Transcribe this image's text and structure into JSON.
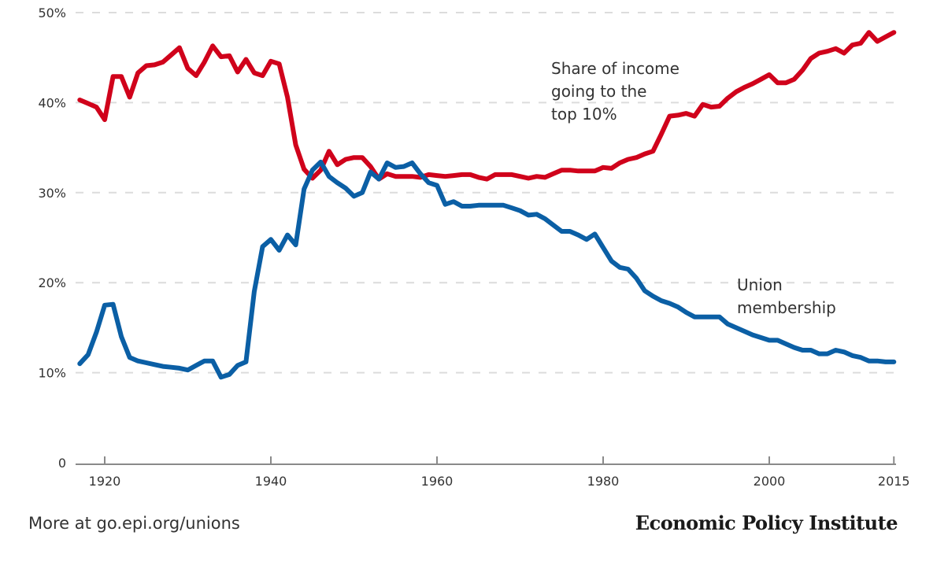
{
  "chart_data": {
    "type": "line",
    "title": "",
    "xlabel": "",
    "ylabel": "",
    "xlim": [
      1917,
      2015
    ],
    "ylim": [
      0,
      50
    ],
    "grid": true,
    "y_ticks": [
      {
        "value": 0,
        "label": "0"
      },
      {
        "value": 10,
        "label": "10%"
      },
      {
        "value": 20,
        "label": "20%"
      },
      {
        "value": 30,
        "label": "30%"
      },
      {
        "value": 40,
        "label": "40%"
      },
      {
        "value": 50,
        "label": "50%"
      }
    ],
    "x_ticks": [
      {
        "value": 1920,
        "label": "1920"
      },
      {
        "value": 1940,
        "label": "1940"
      },
      {
        "value": 1960,
        "label": "1960"
      },
      {
        "value": 1980,
        "label": "1980"
      },
      {
        "value": 2000,
        "label": "2000"
      },
      {
        "value": 2015,
        "label": "2015"
      }
    ],
    "x_start": 1917,
    "series": [
      {
        "name": "Share of income going to the top 10%",
        "label_lines": [
          "Share of income",
          "going to the",
          "top 10%"
        ],
        "color": "#d0021b",
        "values": [
          40.3,
          39.9,
          39.5,
          38.1,
          42.9,
          42.9,
          40.6,
          43.3,
          44.1,
          44.2,
          44.5,
          45.3,
          46.1,
          43.8,
          43.0,
          44.5,
          46.3,
          45.1,
          45.2,
          43.4,
          44.8,
          43.3,
          43.0,
          44.6,
          44.3,
          40.6,
          35.3,
          32.6,
          31.6,
          32.5,
          34.6,
          33.1,
          33.7,
          33.9,
          33.9,
          32.9,
          31.5,
          32.1,
          31.8,
          31.8,
          31.8,
          31.7,
          32.0,
          31.9,
          31.8,
          31.9,
          32.0,
          32.0,
          31.7,
          31.5,
          32.0,
          32.0,
          32.0,
          31.8,
          31.6,
          31.8,
          31.7,
          32.1,
          32.5,
          32.5,
          32.4,
          32.4,
          32.4,
          32.8,
          32.7,
          33.3,
          33.7,
          33.9,
          34.3,
          34.6,
          36.5,
          38.5,
          38.6,
          38.8,
          38.5,
          39.8,
          39.5,
          39.6,
          40.5,
          41.2,
          41.7,
          42.1,
          42.6,
          43.1,
          42.2,
          42.2,
          42.6,
          43.6,
          44.9,
          45.5,
          45.7,
          46.0,
          45.5,
          46.4,
          46.6,
          47.8,
          46.8,
          47.3,
          47.8
        ]
      },
      {
        "name": "Union membership",
        "label_lines": [
          "Union",
          "membership"
        ],
        "color": "#0b5fa5",
        "values": [
          11.0,
          12.0,
          14.5,
          17.5,
          17.6,
          14.0,
          11.7,
          11.3,
          11.1,
          10.9,
          10.7,
          10.6,
          10.5,
          10.3,
          10.8,
          11.3,
          11.3,
          9.5,
          9.8,
          10.8,
          11.2,
          19.0,
          24.0,
          24.8,
          23.6,
          25.3,
          24.2,
          30.4,
          32.5,
          33.4,
          31.8,
          31.1,
          30.5,
          29.6,
          30.0,
          32.3,
          31.5,
          33.3,
          32.8,
          32.9,
          33.3,
          32.1,
          31.1,
          30.8,
          28.7,
          29.0,
          28.5,
          28.5,
          28.6,
          28.6,
          28.6,
          28.6,
          28.3,
          28.0,
          27.5,
          27.6,
          27.1,
          26.4,
          25.7,
          25.7,
          25.3,
          24.8,
          25.4,
          23.9,
          22.4,
          21.7,
          21.5,
          20.5,
          19.1,
          18.5,
          18.0,
          17.7,
          17.3,
          16.7,
          16.2,
          16.2,
          16.2,
          16.2,
          15.4,
          15.0,
          14.6,
          14.2,
          13.9,
          13.6,
          13.6,
          13.2,
          12.8,
          12.5,
          12.5,
          12.1,
          12.1,
          12.5,
          12.3,
          11.9,
          11.7,
          11.3,
          11.3,
          11.2,
          11.2
        ]
      }
    ]
  },
  "footer": {
    "source_link": "More at go.epi.org/unions",
    "brand": "Economic Policy Institute"
  }
}
